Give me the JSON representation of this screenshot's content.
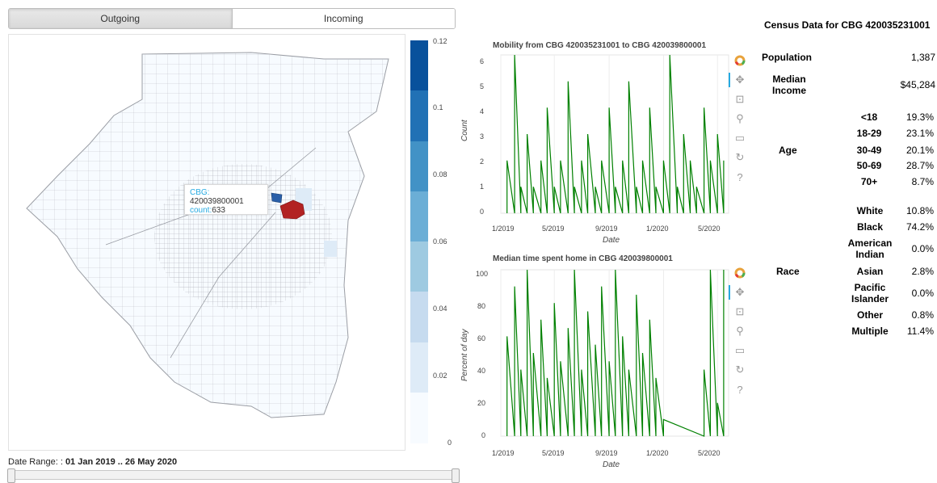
{
  "tabs": {
    "outgoing": "Outgoing",
    "incoming": "Incoming"
  },
  "tooltip": {
    "cbg_label": "CBG:",
    "cbg_value": "420039800001",
    "count_label": "count:",
    "count_value": "633"
  },
  "colorbar": {
    "ticks": [
      "0.12",
      "0.1",
      "0.08",
      "0.06",
      "0.04",
      "0.02",
      "0"
    ],
    "colors": [
      "#08519c",
      "#2171b5",
      "#4292c6",
      "#6baed6",
      "#9ecae1",
      "#c6dbef",
      "#deebf7",
      "#f7fbff"
    ]
  },
  "date_range": {
    "label": "Date Range: :",
    "value": "01 Jan 2019 .. 26 May 2020"
  },
  "plot1": {
    "title": "Mobility from CBG 420035231001 to CBG 420039800001",
    "xlabel": "Date",
    "ylabel": "Count",
    "yticks": [
      "0",
      "1",
      "2",
      "3",
      "4",
      "5",
      "6"
    ],
    "xticks": [
      "1/2019",
      "5/2019",
      "9/2019",
      "1/2020",
      "5/2020"
    ]
  },
  "plot2": {
    "title": "Median time spent home in CBG 420039800001",
    "xlabel": "Date",
    "ylabel": "Percent of day",
    "yticks": [
      "0",
      "20",
      "40",
      "60",
      "80",
      "100"
    ],
    "xticks": [
      "1/2019",
      "5/2019",
      "9/2019",
      "1/2020",
      "5/2020"
    ]
  },
  "toolbar_icons": [
    "bokeh-logo-icon",
    "pan-icon",
    "box-zoom-icon",
    "wheel-zoom-icon",
    "save-icon",
    "reset-icon",
    "help-icon"
  ],
  "chart_data": [
    {
      "type": "line",
      "title": "Mobility from CBG 420035231001 to CBG 420039800001",
      "xlabel": "Date",
      "ylabel": "Count",
      "xlim": [
        "2019-01-01",
        "2020-05-26"
      ],
      "ylim": [
        0,
        6
      ],
      "series": [
        {
          "color": "#008000",
          "note": "daily counts, mostly 0-2 with spikes to 5-6",
          "x": [
            "2019-01-15",
            "2019-02-01",
            "2019-02-15",
            "2019-03-01",
            "2019-03-15",
            "2019-04-01",
            "2019-04-15",
            "2019-05-01",
            "2019-05-15",
            "2019-06-01",
            "2019-06-15",
            "2019-07-01",
            "2019-07-15",
            "2019-08-01",
            "2019-08-15",
            "2019-09-01",
            "2019-09-15",
            "2019-10-01",
            "2019-10-15",
            "2019-11-01",
            "2019-11-15",
            "2019-12-01",
            "2019-12-15",
            "2020-01-01",
            "2020-01-15",
            "2020-02-01",
            "2020-02-15",
            "2020-03-01",
            "2020-03-15",
            "2020-04-01",
            "2020-04-15",
            "2020-05-01",
            "2020-05-15"
          ],
          "y": [
            2,
            6,
            1,
            3,
            1,
            2,
            4,
            1,
            2,
            5,
            1,
            2,
            3,
            1,
            2,
            4,
            1,
            2,
            5,
            1,
            2,
            4,
            1,
            2,
            6,
            1,
            3,
            2,
            1,
            4,
            2,
            3,
            2
          ]
        }
      ]
    },
    {
      "type": "line",
      "title": "Median time spent home in CBG 420039800001",
      "xlabel": "Date",
      "ylabel": "Percent of day",
      "xlim": [
        "2019-01-01",
        "2020-05-26"
      ],
      "ylim": [
        0,
        100
      ],
      "series": [
        {
          "color": "#008000",
          "note": "dense daily values 2019, sparse after Jan 2020",
          "x": [
            "2019-01-15",
            "2019-02-01",
            "2019-02-15",
            "2019-03-01",
            "2019-03-15",
            "2019-04-01",
            "2019-04-15",
            "2019-05-01",
            "2019-05-15",
            "2019-06-01",
            "2019-06-15",
            "2019-07-01",
            "2019-07-15",
            "2019-08-01",
            "2019-08-15",
            "2019-09-01",
            "2019-09-15",
            "2019-10-01",
            "2019-10-15",
            "2019-11-01",
            "2019-11-15",
            "2019-12-01",
            "2019-12-15",
            "2020-01-01",
            "2020-04-01",
            "2020-04-15",
            "2020-05-01",
            "2020-05-15"
          ],
          "y": [
            60,
            90,
            40,
            100,
            50,
            70,
            35,
            80,
            45,
            65,
            100,
            40,
            75,
            55,
            90,
            45,
            100,
            60,
            40,
            85,
            50,
            70,
            35,
            10,
            40,
            100,
            20,
            100
          ]
        }
      ]
    }
  ],
  "census": {
    "title": "Census Data for CBG 420035231001",
    "population_label": "Population",
    "population_value": "1,387",
    "income_label_1": "Median",
    "income_label_2": "Income",
    "income_value": "$45,284",
    "age_label": "Age",
    "age": [
      {
        "label": "<18",
        "value": "19.3%"
      },
      {
        "label": "18-29",
        "value": "23.1%"
      },
      {
        "label": "30-49",
        "value": "20.1%"
      },
      {
        "label": "50-69",
        "value": "28.7%"
      },
      {
        "label": "70+",
        "value": "8.7%"
      }
    ],
    "race_label": "Race",
    "race": [
      {
        "label1": "White",
        "label2": "",
        "value": "10.8%"
      },
      {
        "label1": "Black",
        "label2": "",
        "value": "74.2%"
      },
      {
        "label1": "American",
        "label2": "Indian",
        "value": "0.0%"
      },
      {
        "label1": "Asian",
        "label2": "",
        "value": "2.8%"
      },
      {
        "label1": "Pacific",
        "label2": "Islander",
        "value": "0.0%"
      },
      {
        "label1": "Other",
        "label2": "",
        "value": "0.8%"
      },
      {
        "label1": "Multiple",
        "label2": "",
        "value": "11.4%"
      }
    ]
  }
}
